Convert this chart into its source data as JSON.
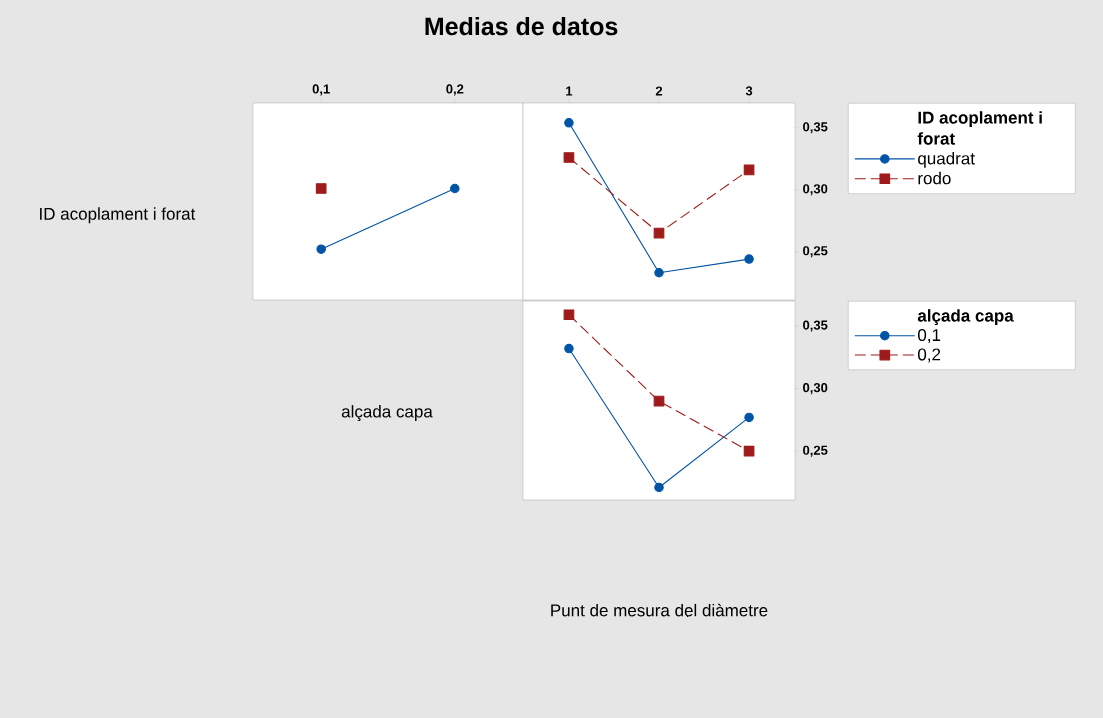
{
  "chart_data": [
    {
      "type": "line",
      "title": "Medias de datos",
      "ylabel": "ID acoplament i forat",
      "x": [
        0.1,
        0.2
      ],
      "xlim": [
        0.049,
        0.251
      ],
      "xticks": [
        {
          "value": 0.1,
          "label": "0,1"
        },
        {
          "value": 0.2,
          "label": "0,2"
        }
      ],
      "ylim": [
        0.211,
        0.37
      ],
      "tick_labels": "x",
      "legend": false,
      "series": [
        {
          "color": "#0054a6",
          "values": [
            0.252,
            0.301
          ],
          "marker": "circle",
          "line_style": "solid"
        },
        {
          "color": "#9e1b1b",
          "values": [
            0.301,
            null
          ],
          "marker": "square",
          "line_style": "dashed"
        }
      ]
    },
    {
      "type": "line",
      "legend_title": "ID acoplament i forat",
      "x": [
        1,
        2,
        3
      ],
      "xlim": [
        0.49,
        3.51
      ],
      "xticks": [
        1,
        2,
        3
      ],
      "ylim": [
        0.211,
        0.37
      ],
      "yticks": [
        {
          "value": 0.25,
          "label": "0,25"
        },
        {
          "value": 0.3,
          "label": "0,30"
        },
        {
          "value": 0.35,
          "label": "0,35"
        }
      ],
      "legend": "right",
      "series": [
        {
          "name": "quadrat",
          "color": "#0054a6",
          "values": [
            0.354,
            0.233,
            0.244
          ],
          "marker": "circle",
          "line_style": "solid"
        },
        {
          "name": "rodo",
          "color": "#9e1b1b",
          "values": [
            0.326,
            0.265,
            0.316
          ],
          "marker": "square",
          "line_style": "dashed"
        }
      ]
    },
    {
      "type": "line",
      "ylabel": "alçada capa",
      "xlabel": "Punt de mesura del diàmetre",
      "legend_title": "alçada capa",
      "x": [
        1,
        2,
        3
      ],
      "xlim": [
        0.49,
        3.51
      ],
      "ylim": [
        0.211,
        0.37
      ],
      "yticks": [
        {
          "value": 0.25,
          "label": "0,25"
        },
        {
          "value": 0.3,
          "label": "0,30"
        },
        {
          "value": 0.35,
          "label": "0,35"
        }
      ],
      "tick_labels": "y",
      "legend": "right",
      "series": [
        {
          "name": "0,1",
          "color": "#0054a6",
          "values": [
            0.332,
            0.221,
            0.277
          ],
          "marker": "circle",
          "line_style": "solid"
        },
        {
          "name": "0,2",
          "color": "#9e1b1b",
          "values": [
            0.359,
            0.29,
            0.25
          ],
          "marker": "square",
          "line_style": "dashed"
        }
      ]
    }
  ]
}
